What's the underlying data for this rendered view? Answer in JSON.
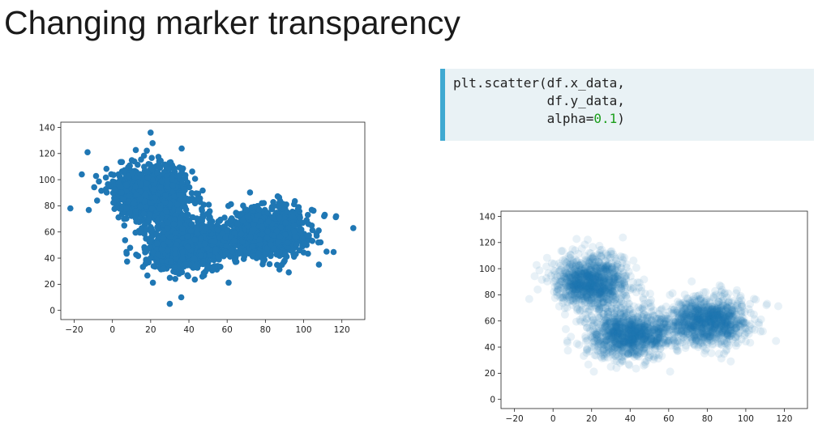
{
  "slide": {
    "title": "Changing marker transparency"
  },
  "code": {
    "line1": "plt.scatter(df.x_data,",
    "line2": "            df.y_data,",
    "line3_prefix": "            alpha=",
    "line3_number": "0.1",
    "line3_suffix": ")"
  },
  "colors": {
    "marker": "#1f77b4",
    "code_accent": "#3fa9d1",
    "code_background": "#e9f2f5",
    "number_token": "#1a9e1a"
  },
  "chart_data": [
    {
      "type": "scatter",
      "title": "",
      "xlabel": "",
      "ylabel": "",
      "xlim": [
        -27,
        132
      ],
      "ylim": [
        -7,
        144
      ],
      "xticks": [
        -20,
        0,
        20,
        40,
        60,
        80,
        100,
        120
      ],
      "yticks": [
        0,
        20,
        40,
        60,
        80,
        100,
        120,
        140
      ],
      "marker_alpha": 1.0,
      "grid": false,
      "series": [
        {
          "clusters": [
            {
              "center": [
                20,
                90
              ],
              "std": [
                9,
                10
              ],
              "count": 1100
            },
            {
              "center": [
                40,
                50
              ],
              "std": [
                11,
                9
              ],
              "count": 1100
            },
            {
              "center": [
                80,
                60
              ],
              "std": [
                11,
                9
              ],
              "count": 1100
            }
          ],
          "outliers": [
            [
              -22,
              78
            ],
            [
              20,
              136
            ],
            [
              21,
              128
            ],
            [
              126,
              63
            ],
            [
              30,
              5
            ],
            [
              117,
              72
            ],
            [
              -13,
              121
            ],
            [
              36,
              10
            ],
            [
              112,
              45
            ],
            [
              108,
              35
            ],
            [
              -16,
              104
            ]
          ]
        }
      ]
    },
    {
      "type": "scatter",
      "title": "",
      "xlabel": "",
      "ylabel": "",
      "xlim": [
        -27,
        132
      ],
      "ylim": [
        -7,
        144
      ],
      "xticks": [
        -20,
        0,
        20,
        40,
        60,
        80,
        100,
        120
      ],
      "yticks": [
        0,
        20,
        40,
        60,
        80,
        100,
        120,
        140
      ],
      "marker_alpha": 0.1,
      "grid": false,
      "series": [
        {
          "clusters": [
            {
              "center": [
                20,
                90
              ],
              "std": [
                9,
                10
              ],
              "count": 1100
            },
            {
              "center": [
                40,
                50
              ],
              "std": [
                11,
                9
              ],
              "count": 1100
            },
            {
              "center": [
                80,
                60
              ],
              "std": [
                11,
                9
              ],
              "count": 1100
            }
          ]
        }
      ]
    }
  ]
}
